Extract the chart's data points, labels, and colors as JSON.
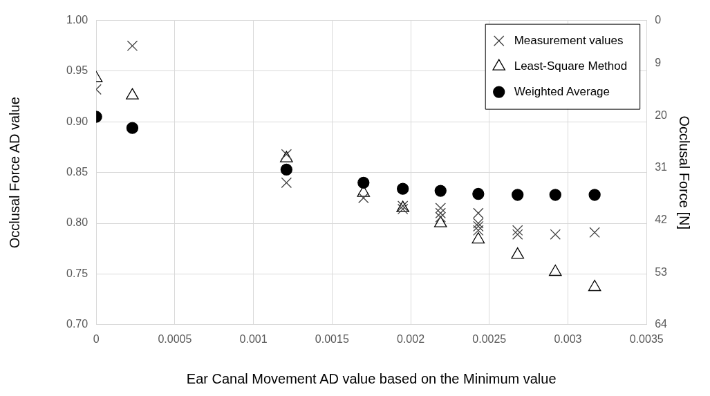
{
  "chart_data": {
    "type": "scatter",
    "xlabel": "Ear Canal Movement AD value based on the Minimum value",
    "ylabel": "Occlusal Force AD value",
    "y2label": "Occlusal Force [N]",
    "xlim": [
      0,
      0.0035
    ],
    "xticks": [
      0,
      0.0005,
      0.001,
      0.0015,
      0.002,
      0.0025,
      0.003,
      0.0035
    ],
    "ylim": [
      0.7,
      1.0
    ],
    "yticks": [
      {
        "value": 0.7,
        "label": "0.70"
      },
      0.75,
      {
        "value": 0.8,
        "label": "0.80"
      },
      0.85,
      {
        "value": 0.9,
        "label": "0.90"
      },
      0.95,
      {
        "value": 1.0,
        "label": "1.00"
      }
    ],
    "y2lim": [
      64,
      0
    ],
    "y2ticks": [
      0,
      9,
      20,
      31,
      42,
      53,
      64
    ],
    "grid": true,
    "legend": "top right",
    "series": [
      {
        "name": "Measurement values",
        "marker": "cross",
        "color": "#404040",
        "x": [
          0,
          0.00023,
          0.00121,
          0.00121,
          0.0017,
          0.00195,
          0.00195,
          0.00219,
          0.00219,
          0.00219,
          0.00243,
          0.00243,
          0.00243,
          0.00243,
          0.00268,
          0.00268,
          0.00292,
          0.00317
        ],
        "values": [
          0.932,
          0.975,
          0.868,
          0.84,
          0.825,
          0.817,
          0.814,
          0.815,
          0.81,
          0.806,
          0.81,
          0.8,
          0.797,
          0.793,
          0.793,
          0.789,
          0.789,
          0.791
        ]
      },
      {
        "name": "Least-Square Method",
        "marker": "triangle",
        "color": "#000000",
        "x": [
          0,
          0.00023,
          0.00121,
          0.0017,
          0.00195,
          0.00219,
          0.00243,
          0.00268,
          0.00292,
          0.00317
        ],
        "values": [
          0.943,
          0.926,
          0.864,
          0.83,
          0.815,
          0.8,
          0.784,
          0.769,
          0.752,
          0.737
        ]
      },
      {
        "name": "Weighted Average",
        "marker": "circle",
        "color": "#000000",
        "x": [
          0,
          0.00023,
          0.00121,
          0.0017,
          0.00195,
          0.00219,
          0.00243,
          0.00268,
          0.00292,
          0.00317
        ],
        "values": [
          0.905,
          0.894,
          0.853,
          0.84,
          0.834,
          0.832,
          0.829,
          0.828,
          0.828,
          0.828
        ]
      }
    ]
  }
}
